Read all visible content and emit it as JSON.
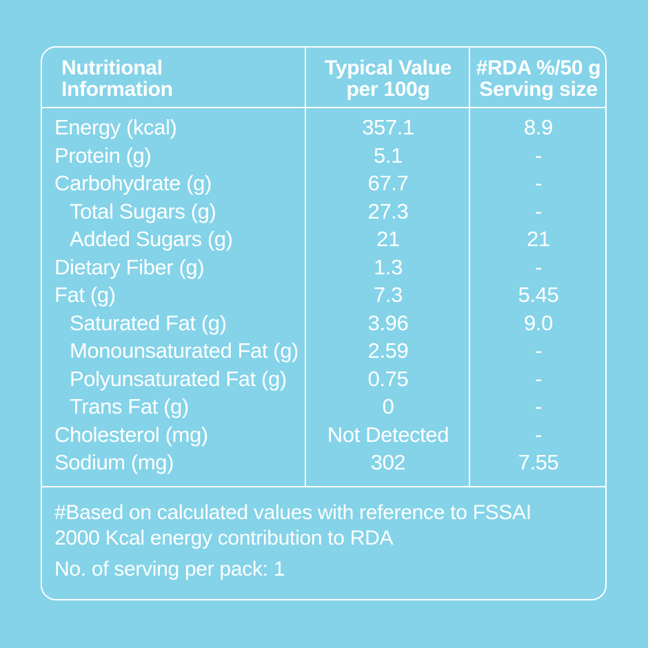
{
  "header": {
    "col1": [
      "Nutritional",
      "Information"
    ],
    "col2": [
      "Typical Value",
      "per 100g"
    ],
    "col3": [
      "#RDA %/50 g",
      "Serving size"
    ]
  },
  "rows": [
    {
      "label": "Energy (kcal)",
      "value": "357.1",
      "rda": "8.9",
      "indent": false
    },
    {
      "label": "Protein (g)",
      "value": "5.1",
      "rda": "-",
      "indent": false
    },
    {
      "label": "Carbohydrate (g)",
      "value": "67.7",
      "rda": "-",
      "indent": false
    },
    {
      "label": "Total Sugars (g)",
      "value": "27.3",
      "rda": "-",
      "indent": true
    },
    {
      "label": "Added Sugars (g)",
      "value": "21",
      "rda": "21",
      "indent": true
    },
    {
      "label": "Dietary Fiber (g)",
      "value": "1.3",
      "rda": "-",
      "indent": false
    },
    {
      "label": "Fat (g)",
      "value": "7.3",
      "rda": "5.45",
      "indent": false
    },
    {
      "label": "Saturated Fat (g)",
      "value": "3.96",
      "rda": "9.0",
      "indent": true
    },
    {
      "label": "Monounsaturated Fat (g)",
      "value": "2.59",
      "rda": "-",
      "indent": true
    },
    {
      "label": "Polyunsaturated Fat (g)",
      "value": "0.75",
      "rda": "-",
      "indent": true
    },
    {
      "label": "Trans Fat (g)",
      "value": "0",
      "rda": "-",
      "indent": true
    },
    {
      "label": "Cholesterol (mg)",
      "value": "Not Detected",
      "rda": "-",
      "indent": false
    },
    {
      "label": "Sodium (mg)",
      "value": "302",
      "rda": "7.55",
      "indent": false
    }
  ],
  "footnote": {
    "line1": "#Based on calculated values with reference to FSSAI",
    "line2": "2000 Kcal energy contribution to RDA",
    "serving": "No. of serving per pack: 1"
  },
  "colors": {
    "background": "#84d3e8",
    "foreground": "#ffffff"
  }
}
